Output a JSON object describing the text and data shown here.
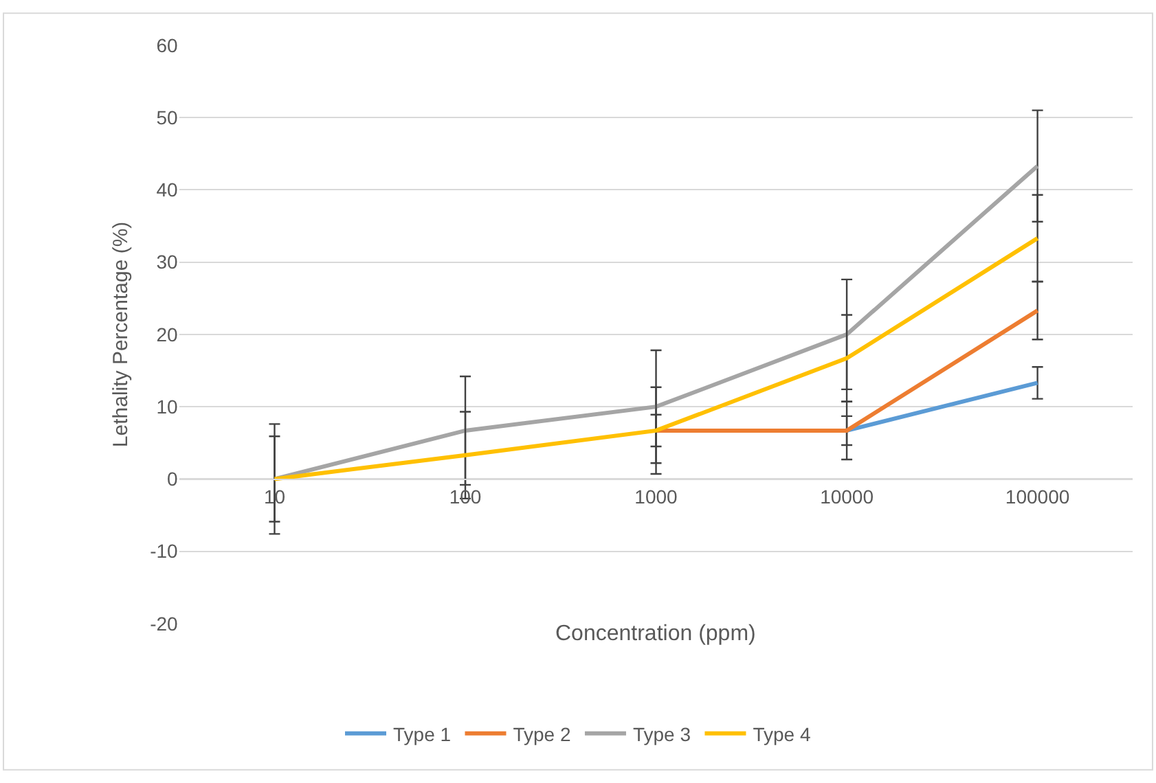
{
  "chart_data": {
    "type": "line",
    "xlabel": "Concentration (ppm)",
    "ylabel": "Lethality Percentage (%)",
    "categories": [
      "10",
      "100",
      "1000",
      "10000",
      "100000"
    ],
    "series": [
      {
        "name": "Type 1",
        "color": "#5b9bd5",
        "values": [
          null,
          null,
          null,
          6.7,
          13.3
        ],
        "errors": [
          null,
          null,
          null,
          2,
          2.2
        ]
      },
      {
        "name": "Type 2",
        "color": "#ed7d31",
        "values": [
          null,
          null,
          6.7,
          6.7,
          23.3
        ],
        "errors": [
          null,
          null,
          2.2,
          4,
          4
        ]
      },
      {
        "name": "Type 3",
        "color": "#a5a5a5",
        "values": [
          0,
          6.7,
          10,
          20,
          43.3
        ],
        "errors": [
          7.6,
          7.5,
          7.8,
          7.6,
          7.7
        ]
      },
      {
        "name": "Type 4",
        "color": "#ffc000",
        "values": [
          0,
          3.3,
          6.7,
          16.7,
          33.3
        ],
        "errors": [
          5.9,
          6,
          6,
          6,
          6
        ]
      }
    ],
    "ylim": [
      -20,
      60
    ],
    "yticks": [
      -20,
      -10,
      0,
      10,
      20,
      30,
      40,
      50,
      60
    ],
    "grid": "y",
    "legend": "bottom",
    "marker": "none",
    "line_style": "solid"
  }
}
